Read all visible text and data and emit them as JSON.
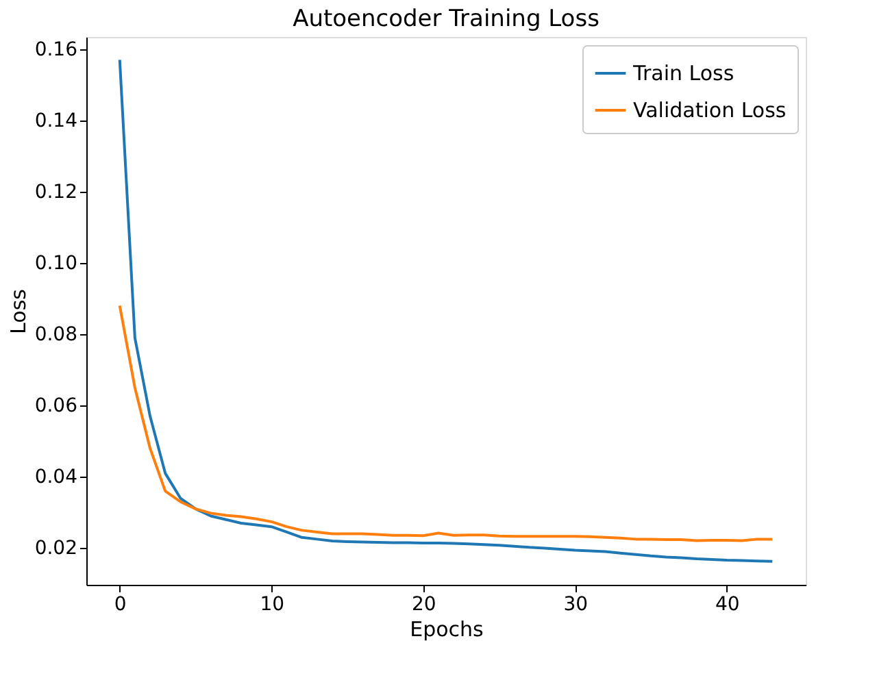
{
  "chart_data": {
    "type": "line",
    "title": "Autoencoder Training Loss",
    "xlabel": "Epochs",
    "ylabel": "Loss",
    "x": [
      0,
      1,
      2,
      3,
      4,
      5,
      6,
      7,
      8,
      9,
      10,
      11,
      12,
      13,
      14,
      15,
      16,
      17,
      18,
      19,
      20,
      21,
      22,
      23,
      24,
      25,
      26,
      27,
      28,
      29,
      30,
      31,
      32,
      33,
      34,
      35,
      36,
      37,
      38,
      39,
      40,
      41,
      42,
      43
    ],
    "series": [
      {
        "name": "Train Loss",
        "color": "#1f77b4",
        "values": [
          0.157,
          0.079,
          0.057,
          0.041,
          0.034,
          0.031,
          0.029,
          0.028,
          0.027,
          0.0265,
          0.026,
          0.0245,
          0.023,
          0.0225,
          0.022,
          0.0218,
          0.0217,
          0.0216,
          0.0215,
          0.0215,
          0.0214,
          0.0214,
          0.0213,
          0.0212,
          0.021,
          0.0208,
          0.0205,
          0.0202,
          0.02,
          0.0197,
          0.0194,
          0.0192,
          0.019,
          0.0186,
          0.0182,
          0.0178,
          0.0175,
          0.0173,
          0.017,
          0.0168,
          0.0166,
          0.0165,
          0.0164,
          0.0163
        ]
      },
      {
        "name": "Validation Loss",
        "color": "#ff7f0e",
        "values": [
          0.088,
          0.065,
          0.048,
          0.036,
          0.033,
          0.031,
          0.0298,
          0.0292,
          0.0288,
          0.0282,
          0.0274,
          0.026,
          0.025,
          0.0245,
          0.024,
          0.024,
          0.024,
          0.0238,
          0.0236,
          0.0236,
          0.0235,
          0.0242,
          0.0236,
          0.0237,
          0.0237,
          0.0234,
          0.0233,
          0.0233,
          0.0233,
          0.0233,
          0.0233,
          0.0232,
          0.023,
          0.0228,
          0.0225,
          0.0225,
          0.0224,
          0.0224,
          0.0221,
          0.0222,
          0.0222,
          0.0221,
          0.0225,
          0.0225
        ]
      }
    ],
    "xlim": [
      -2.2,
      45.2
    ],
    "ylim": [
      0.0097,
      0.1634
    ],
    "xticks": [
      0,
      10,
      20,
      30,
      40
    ],
    "yticks": [
      {
        "value": 0.02,
        "label": "0.02"
      },
      {
        "value": 0.04,
        "label": "0.04"
      },
      {
        "value": 0.06,
        "label": "0.06"
      },
      {
        "value": 0.08,
        "label": "0.08"
      },
      {
        "value": 0.1,
        "label": "0.10"
      },
      {
        "value": 0.12,
        "label": "0.12"
      },
      {
        "value": 0.14,
        "label": "0.14"
      },
      {
        "value": 0.16,
        "label": "0.16"
      }
    ],
    "legend": "top right",
    "grid": false,
    "marker": "none",
    "line_style": "solid"
  }
}
